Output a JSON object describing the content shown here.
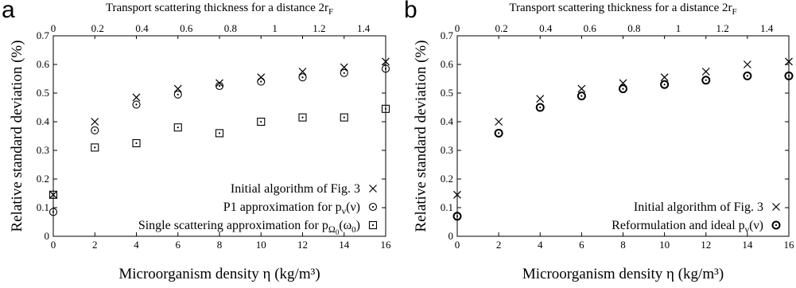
{
  "chart_data": [
    {
      "panel": "a",
      "type": "scatter",
      "xlabel": "Microorganism density η (kg/m³)",
      "ylabel": "Relative standard deviation (%)",
      "top_xlabel": "Transport scattering thickness for a distance 2r",
      "top_xlabel_sub": "F",
      "xlim": [
        0,
        16
      ],
      "ylim": [
        0,
        0.7
      ],
      "xticks": [
        "0",
        "2",
        "4",
        "6",
        "8",
        "10",
        "12",
        "14",
        "16"
      ],
      "yticks": [
        "0",
        "0.1",
        "0.2",
        "0.3",
        "0.4",
        "0.5",
        "0.6",
        "0.7"
      ],
      "top_xlim": [
        0,
        1.5
      ],
      "top_xticks": [
        "0",
        "0.2",
        "0.4",
        "0.6",
        "0.8",
        "1",
        "1.2",
        "1.4"
      ],
      "legend_position": "bottom-right",
      "series": [
        {
          "name": "Initial algorithm of Fig. 3",
          "marker": "x",
          "x": [
            0,
            2,
            4,
            6,
            8,
            10,
            12,
            14,
            16
          ],
          "y": [
            0.145,
            0.4,
            0.485,
            0.515,
            0.535,
            0.555,
            0.575,
            0.59,
            0.61
          ]
        },
        {
          "name": "P1 approximation for p",
          "name_sub": "ν",
          "name_tail": "(ν)",
          "marker": "circle-dot",
          "x": [
            0,
            2,
            4,
            6,
            8,
            10,
            12,
            14,
            16
          ],
          "y": [
            0.085,
            0.37,
            0.46,
            0.495,
            0.525,
            0.54,
            0.555,
            0.57,
            0.585
          ]
        },
        {
          "name": "Single scattering approximation for p",
          "name_sub": "Ω",
          "name_subsub": "0",
          "name_tail": "(ω",
          "name_tail_sub": "0",
          "name_tail_end": ")",
          "marker": "square-dot",
          "x": [
            0,
            2,
            4,
            6,
            8,
            10,
            12,
            14,
            16
          ],
          "y": [
            0.145,
            0.31,
            0.325,
            0.38,
            0.36,
            0.4,
            0.415,
            0.415,
            0.445
          ]
        }
      ]
    },
    {
      "panel": "b",
      "type": "scatter",
      "xlabel": "Microorganism density η (kg/m³)",
      "ylabel": "Relative standard deviation (%)",
      "top_xlabel": "Transport scattering thickness for a distance 2r",
      "top_xlabel_sub": "F",
      "xlim": [
        0,
        16
      ],
      "ylim": [
        0,
        0.7
      ],
      "xticks": [
        "0",
        "2",
        "4",
        "6",
        "8",
        "10",
        "12",
        "14",
        "16"
      ],
      "yticks": [
        "0",
        "0.1",
        "0.2",
        "0.3",
        "0.4",
        "0.5",
        "0.6",
        "0.7"
      ],
      "top_xlim": [
        0,
        1.5
      ],
      "top_xticks": [
        "0",
        "0.2",
        "0.4",
        "0.6",
        "0.8",
        "1",
        "1.2",
        "1.4"
      ],
      "legend_position": "bottom-right",
      "series": [
        {
          "name": "Initial algorithm of Fig. 3",
          "marker": "x",
          "x": [
            0,
            2,
            4,
            6,
            8,
            10,
            12,
            14,
            16
          ],
          "y": [
            0.145,
            0.4,
            0.48,
            0.515,
            0.535,
            0.555,
            0.575,
            0.6,
            0.61
          ]
        },
        {
          "name": "Reformulation and ideal p",
          "name_sub": "ν",
          "name_tail": "(ν)",
          "marker": "circle-dot-bold",
          "x": [
            0,
            2,
            4,
            6,
            8,
            10,
            12,
            14,
            16
          ],
          "y": [
            0.07,
            0.36,
            0.45,
            0.49,
            0.515,
            0.53,
            0.545,
            0.56,
            0.56
          ]
        }
      ]
    }
  ]
}
